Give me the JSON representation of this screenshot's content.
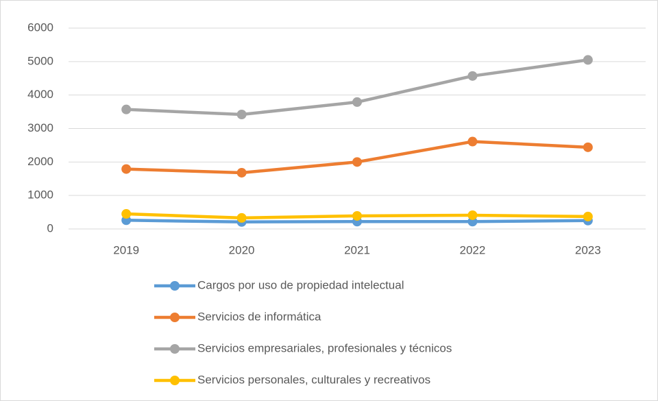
{
  "chart_data": {
    "type": "line",
    "categories": [
      "2019",
      "2020",
      "2021",
      "2022",
      "2023"
    ],
    "series": [
      {
        "name": "Cargos por uso de propiedad intelectual",
        "color": "#5b9bd5",
        "values": [
          260,
          210,
          220,
          220,
          250
        ]
      },
      {
        "name": "Servicios de informática",
        "color": "#ed7d31",
        "values": [
          1790,
          1680,
          2000,
          2610,
          2440
        ]
      },
      {
        "name": "Servicios empresariales, profesionales y técnicos",
        "color": "#a5a5a5",
        "values": [
          3570,
          3420,
          3790,
          4570,
          5050
        ]
      },
      {
        "name": "Servicios personales, culturales y recreativos",
        "color": "#ffc000",
        "values": [
          450,
          330,
          390,
          410,
          370
        ]
      }
    ],
    "ylim": [
      0,
      6000
    ],
    "yticks": [
      0,
      1000,
      2000,
      3000,
      4000,
      5000,
      6000
    ],
    "grid": true,
    "legend": "bottom"
  }
}
